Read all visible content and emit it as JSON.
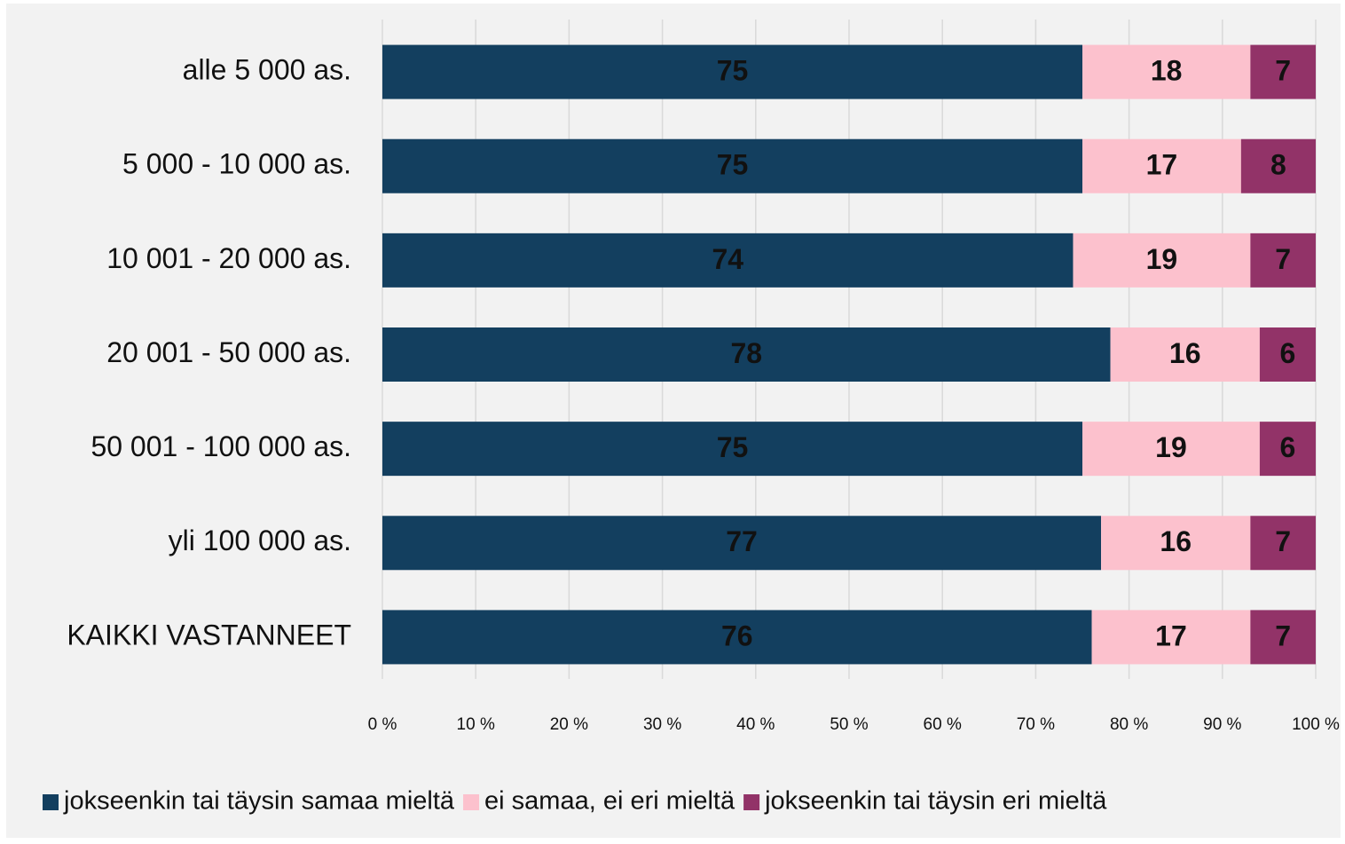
{
  "chart_data": {
    "type": "bar",
    "orientation": "horizontal",
    "stacked": true,
    "categories": [
      "alle 5 000 as.",
      "5 000 - 10 000 as.",
      "10 001 - 20 000 as.",
      "20 001 - 50 000 as.",
      "50 001 - 100 000 as.",
      "yli 100 000 as.",
      "KAIKKI VASTANNEET"
    ],
    "series": [
      {
        "name": "jokseenkin tai täysin samaa mieltä",
        "color": "#133f5f",
        "values": [
          75,
          75,
          74,
          78,
          75,
          77,
          76
        ]
      },
      {
        "name": "ei samaa, ei eri mieltä",
        "color": "#fcc1cd",
        "values": [
          18,
          17,
          19,
          16,
          19,
          16,
          17
        ]
      },
      {
        "name": "jokseenkin tai täysin eri mieltä",
        "color": "#923368",
        "values": [
          7,
          8,
          7,
          6,
          6,
          7,
          7
        ]
      }
    ],
    "xlim": [
      0,
      100
    ],
    "xticks": [
      {
        "value": 0,
        "label": "0 %"
      },
      {
        "value": 10,
        "label": "10 %"
      },
      {
        "value": 20,
        "label": "20 %"
      },
      {
        "value": 30,
        "label": "30 %"
      },
      {
        "value": 40,
        "label": "40 %"
      },
      {
        "value": 50,
        "label": "50 %"
      },
      {
        "value": 60,
        "label": "60 %"
      },
      {
        "value": 70,
        "label": "70 %"
      },
      {
        "value": 80,
        "label": "80 %"
      },
      {
        "value": 90,
        "label": "90 %"
      },
      {
        "value": 100,
        "label": "100 %"
      }
    ],
    "grid": true,
    "legend": "bottom"
  }
}
